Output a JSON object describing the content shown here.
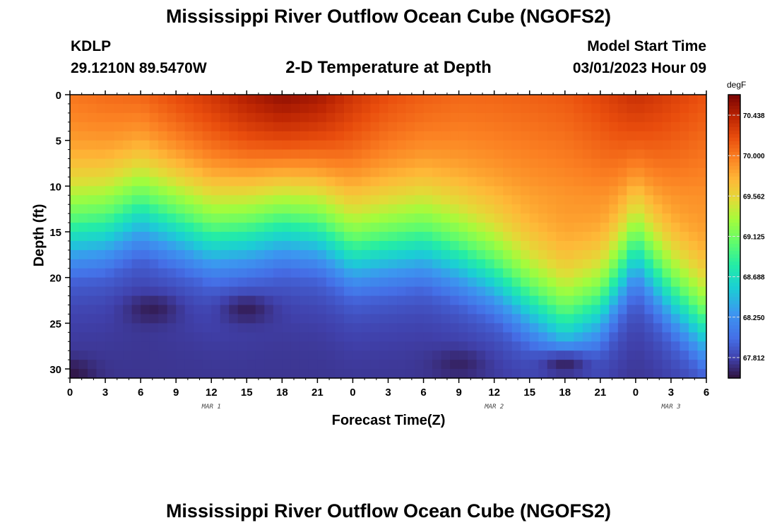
{
  "header": {
    "title_top": "Mississippi River Outflow Ocean Cube (NGOFS2)",
    "title_bottom": "Mississippi River Outflow Ocean Cube (NGOFS2)",
    "station_id": "KDLP",
    "station_coords": "29.1210N  89.5470W",
    "plot_title": "2-D Temperature at Depth",
    "run_label": "Model Start Time",
    "run_value": "03/01/2023 Hour 09"
  },
  "chart_data": {
    "type": "heatmap",
    "title": "2-D Temperature at Depth",
    "xlabel": "Forecast Time(Z)",
    "ylabel": "Depth (ft)",
    "x_ticks": [
      "0",
      "3",
      "6",
      "9",
      "12",
      "15",
      "18",
      "21",
      "0",
      "3",
      "6",
      "9",
      "12",
      "15",
      "18",
      "21",
      "0",
      "3",
      "6"
    ],
    "x_range_hours": [
      0,
      54
    ],
    "date_labels": [
      {
        "hour": 12,
        "label": "MAR 1"
      },
      {
        "hour": 36,
        "label": "MAR 2"
      },
      {
        "hour": 51,
        "label": "MAR 3"
      }
    ],
    "y_ticks": [
      0,
      5,
      10,
      15,
      20,
      25,
      30
    ],
    "ylim": [
      31,
      0
    ],
    "colorbar": {
      "unit": "degF",
      "range": [
        67.59,
        70.66
      ],
      "tick_values": [
        67.812,
        68.25,
        68.688,
        69.125,
        69.562,
        70.0,
        70.438
      ],
      "tick_labels": [
        "67.812",
        "68.250",
        "68.688",
        "69.125",
        "69.562",
        "70.000",
        "70.438"
      ]
    },
    "thermocline_depth_ft": [
      [
        0,
        13.5
      ],
      [
        3,
        13.0
      ],
      [
        6,
        11.0
      ],
      [
        9,
        12.5
      ],
      [
        12,
        14.0
      ],
      [
        15,
        13.5
      ],
      [
        18,
        12.5
      ],
      [
        21,
        13.0
      ],
      [
        24,
        15.5
      ],
      [
        27,
        15.0
      ],
      [
        30,
        14.5
      ],
      [
        33,
        16.0
      ],
      [
        36,
        18.0
      ],
      [
        39,
        21.0
      ],
      [
        42,
        23.5
      ],
      [
        45,
        21.5
      ],
      [
        48,
        15.0
      ],
      [
        51,
        20.0
      ],
      [
        54,
        24.0
      ]
    ],
    "thermocline_width_ft": 3.2,
    "surface_temp_degF": [
      [
        0,
        70.05
      ],
      [
        3,
        70.1
      ],
      [
        6,
        70.15
      ],
      [
        9,
        70.25
      ],
      [
        12,
        70.35
      ],
      [
        15,
        70.5
      ],
      [
        18,
        70.62
      ],
      [
        21,
        70.55
      ],
      [
        24,
        70.35
      ],
      [
        27,
        70.22
      ],
      [
        30,
        70.15
      ],
      [
        33,
        70.1
      ],
      [
        36,
        70.1
      ],
      [
        39,
        70.12
      ],
      [
        42,
        70.15
      ],
      [
        45,
        70.25
      ],
      [
        48,
        70.38
      ],
      [
        51,
        70.28
      ],
      [
        54,
        70.18
      ]
    ],
    "bottom_temp_degF": 67.75,
    "cold_cores": [
      {
        "hour": 7,
        "depth_ft": 23.5,
        "temp_degF": 67.63
      },
      {
        "hour": 15,
        "depth_ft": 23.5,
        "temp_degF": 67.63
      },
      {
        "hour": 0,
        "depth_ft": 30.5,
        "temp_degF": 67.6
      },
      {
        "hour": 33,
        "depth_ft": 29.5,
        "temp_degF": 67.66
      },
      {
        "hour": 42,
        "depth_ft": 29.5,
        "temp_degF": 67.63
      }
    ]
  }
}
